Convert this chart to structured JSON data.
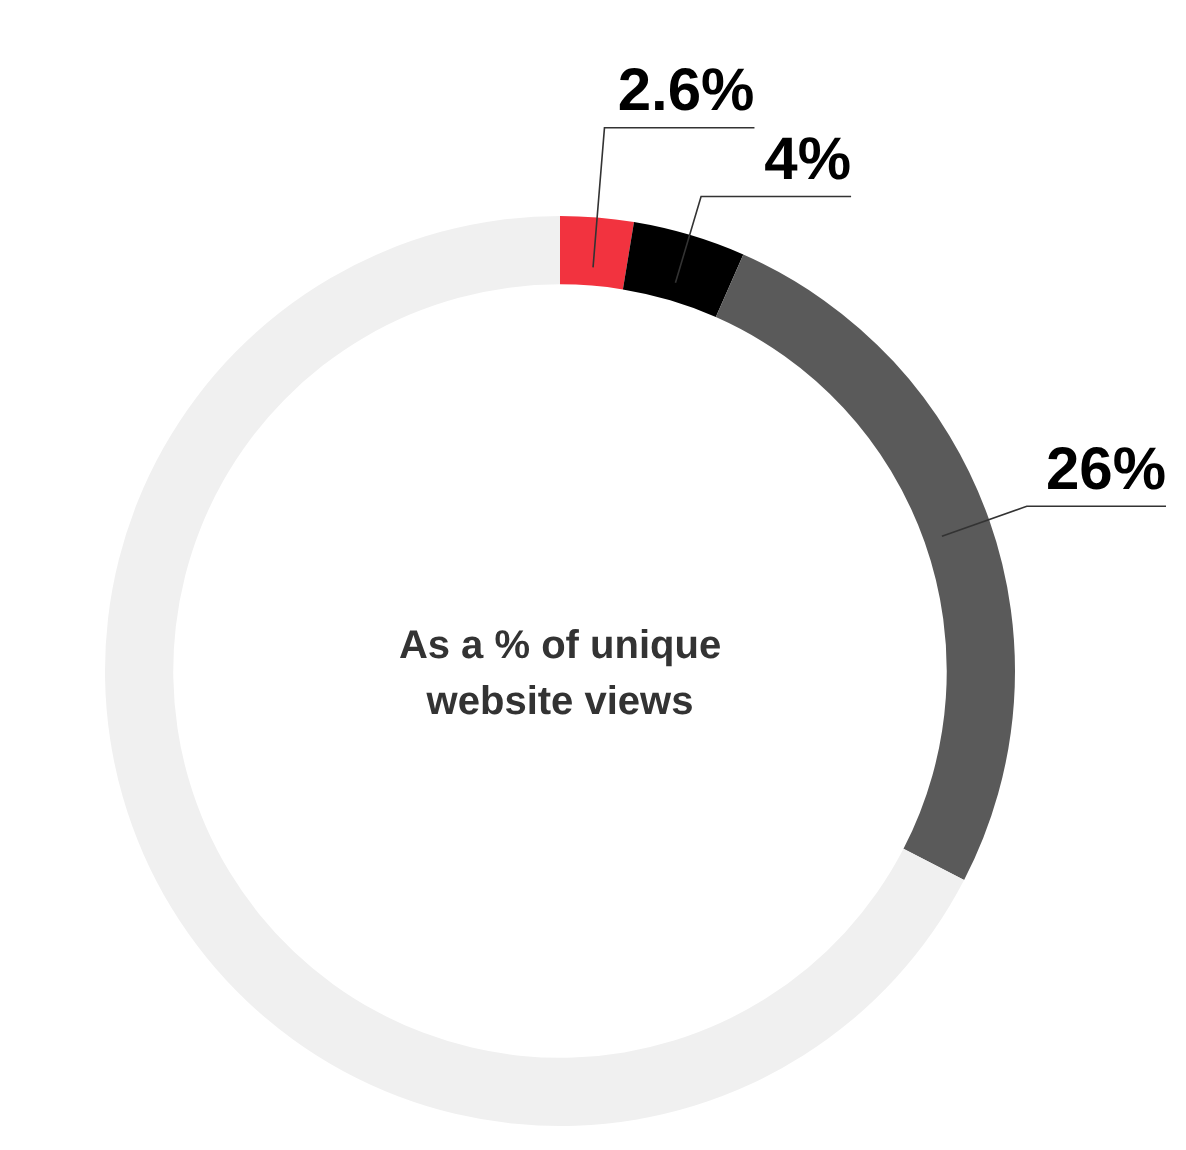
{
  "chart_data": {
    "type": "donut",
    "categories": [
      null,
      null,
      null,
      null
    ],
    "values": [
      2.6,
      4,
      26,
      67.4
    ],
    "colors": [
      "#f2333f",
      "#000000",
      "#5a5a5a",
      "#f0f0f0"
    ],
    "value_labels": [
      "2.6%",
      "4%",
      "26%",
      null
    ],
    "annotations": [
      "As a % of unique website views"
    ],
    "legend": false
  }
}
